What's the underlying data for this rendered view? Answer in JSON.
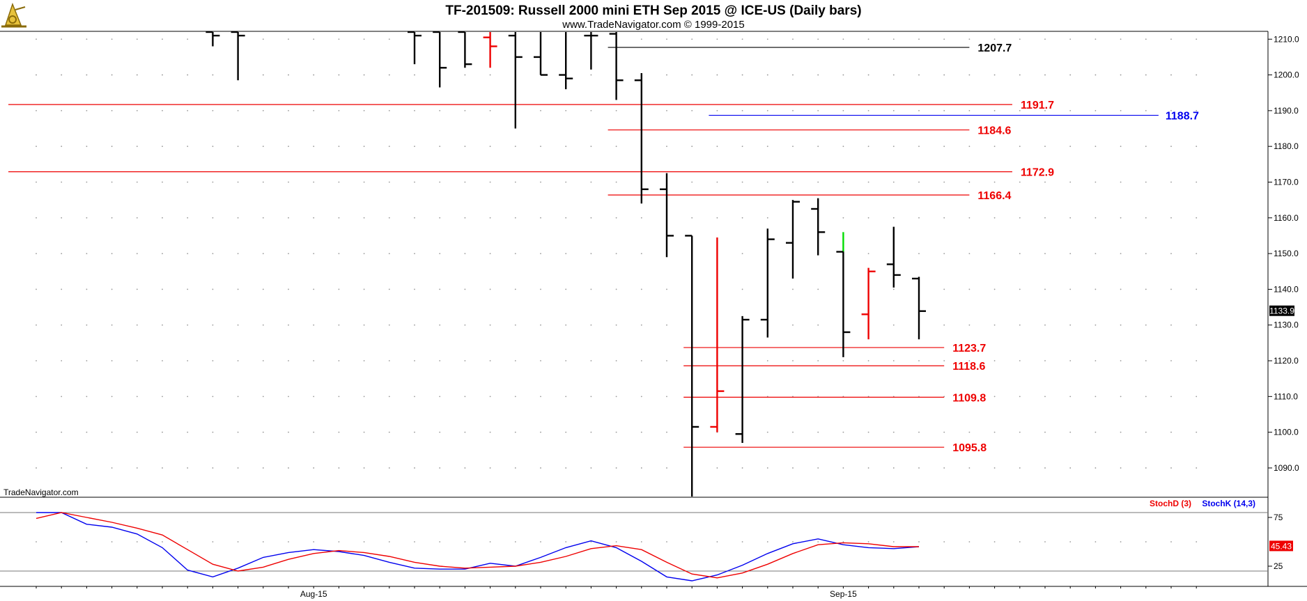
{
  "header": {
    "title": "TF-201509:  Russell 2000 mini ETH Sep 2015 @ ICE-US  (Daily bars)",
    "subtitle": "www.TradeNavigator.com © 1999-2015",
    "watermark": "TradeNavigator.com",
    "logo_icon": "sextant-logo-icon"
  },
  "colors": {
    "up_bar": "#000000",
    "down_bar": "#ee0000",
    "level_red": "#ee0000",
    "level_black": "#000000",
    "level_blue": "#0000ee",
    "stoch_d": "#ee0000",
    "stoch_k": "#0000ee",
    "last_green": "#00dd00"
  },
  "chart_data": [
    {
      "type": "ohlc",
      "ylim": [
        1082,
        1212
      ],
      "y_ticks": [
        "1210.0",
        "1200.0",
        "1190.0",
        "1180.0",
        "1170.0",
        "1160.0",
        "1150.0",
        "1140.0",
        "1130.0",
        "1120.0",
        "1110.0",
        "1100.0",
        "1090.0"
      ],
      "x_labels": [
        {
          "label": "Aug-15",
          "bar": 11
        },
        {
          "label": "Sep-15",
          "bar": 32
        }
      ],
      "last_price": "1133.9",
      "bars": [
        {
          "i": 7,
          "o": 1212,
          "h": 1212,
          "l": 1208,
          "c": 1211,
          "color": "black"
        },
        {
          "i": 8,
          "o": 1212,
          "h": 1212,
          "l": 1198.5,
          "c": 1211,
          "color": "black"
        },
        {
          "i": 15,
          "o": 1212,
          "h": 1212,
          "l": 1203,
          "c": 1211,
          "color": "black"
        },
        {
          "i": 16,
          "o": 1212,
          "h": 1212,
          "l": 1196.5,
          "c": 1202,
          "color": "black"
        },
        {
          "i": 17,
          "o": 1212,
          "h": 1212,
          "l": 1202,
          "c": 1203,
          "color": "black"
        },
        {
          "i": 18,
          "o": 1210.5,
          "h": 1212,
          "l": 1202,
          "c": 1208,
          "color": "red"
        },
        {
          "i": 19,
          "o": 1211,
          "h": 1212,
          "l": 1185,
          "c": 1205,
          "color": "black"
        },
        {
          "i": 20,
          "o": 1205,
          "h": 1212,
          "l": 1200,
          "c": 1200,
          "color": "black"
        },
        {
          "i": 21,
          "o": 1200,
          "h": 1212,
          "l": 1196,
          "c": 1199,
          "color": "black"
        },
        {
          "i": 22,
          "o": 1211,
          "h": 1212,
          "l": 1201.5,
          "c": 1211,
          "color": "black"
        },
        {
          "i": 23,
          "o": 1211.5,
          "h": 1212,
          "l": 1193,
          "c": 1198.5,
          "color": "black"
        },
        {
          "i": 24,
          "o": 1198.5,
          "h": 1200.5,
          "l": 1164,
          "c": 1168,
          "color": "black"
        },
        {
          "i": 25,
          "o": 1168,
          "h": 1172.5,
          "l": 1149,
          "c": 1155,
          "color": "black"
        },
        {
          "i": 26,
          "o": 1155,
          "h": 1155,
          "l": 1082,
          "c": 1101.5,
          "color": "black"
        },
        {
          "i": 27,
          "o": 1101.5,
          "h": 1154.5,
          "l": 1100,
          "c": 1111.5,
          "color": "red"
        },
        {
          "i": 28,
          "o": 1099.5,
          "h": 1132.5,
          "l": 1097,
          "c": 1131.5,
          "color": "black"
        },
        {
          "i": 29,
          "o": 1131.5,
          "h": 1157,
          "l": 1126.5,
          "c": 1154,
          "color": "black"
        },
        {
          "i": 30,
          "o": 1153,
          "h": 1165,
          "l": 1143,
          "c": 1164.5,
          "color": "black"
        },
        {
          "i": 31,
          "o": 1162.5,
          "h": 1165.5,
          "l": 1149.5,
          "c": 1156,
          "color": "black"
        },
        {
          "i": 32,
          "o": 1150.5,
          "h": 1156,
          "l": 1121,
          "c": 1128,
          "color": "black",
          "top_color": "green"
        },
        {
          "i": 33,
          "o": 1133,
          "h": 1146,
          "l": 1126,
          "c": 1145,
          "color": "red"
        },
        {
          "i": 34,
          "o": 1147,
          "h": 1157.5,
          "l": 1140.5,
          "c": 1144,
          "color": "black"
        },
        {
          "i": 35,
          "o": 1143,
          "h": 1143.5,
          "l": 1126,
          "c": 1133.9,
          "color": "black"
        }
      ],
      "levels": [
        {
          "value": 1207.7,
          "label": "1207.7",
          "color": "black",
          "from_bar": 23,
          "to_bar": 37
        },
        {
          "value": 1191.7,
          "label": "1191.7",
          "color": "red",
          "from_bar": 0,
          "to_bar": 38.7
        },
        {
          "value": 1188.7,
          "label": "1188.7",
          "color": "blue",
          "from_bar": 27,
          "to_bar": 44.5
        },
        {
          "value": 1184.6,
          "label": "1184.6",
          "color": "red",
          "from_bar": 23,
          "to_bar": 37
        },
        {
          "value": 1172.9,
          "label": "1172.9",
          "color": "red",
          "from_bar": 0,
          "to_bar": 38.7
        },
        {
          "value": 1166.4,
          "label": "1166.4",
          "color": "red",
          "from_bar": 23,
          "to_bar": 37
        },
        {
          "value": 1123.7,
          "label": "1123.7",
          "color": "red",
          "from_bar": 26,
          "to_bar": 36
        },
        {
          "value": 1118.6,
          "label": "1118.6",
          "color": "red",
          "from_bar": 26,
          "to_bar": 36
        },
        {
          "value": 1109.8,
          "label": "1109.8",
          "color": "red",
          "from_bar": 26,
          "to_bar": 36
        },
        {
          "value": 1095.8,
          "label": "1095.8",
          "color": "red",
          "from_bar": 26,
          "to_bar": 36
        }
      ]
    },
    {
      "type": "line",
      "ylim": [
        5,
        95
      ],
      "y_ticks": [
        "75",
        "25"
      ],
      "reference_lines": [
        80,
        20
      ],
      "last_value": "45.43",
      "legend": [
        {
          "name": "StochD (3)",
          "color": "red"
        },
        {
          "name": "StochK (14,3)",
          "color": "blue"
        }
      ],
      "series": [
        {
          "name": "StochK (14,3)",
          "color": "blue",
          "x": [
            0,
            1,
            2,
            3,
            4,
            5,
            6,
            7,
            8,
            9,
            10,
            11,
            12,
            13,
            14,
            15,
            16,
            17,
            18,
            19,
            20,
            21,
            22,
            23,
            24,
            25,
            26,
            27,
            28,
            29,
            30,
            31,
            32,
            33,
            34,
            35
          ],
          "values": [
            80,
            80,
            68,
            65,
            58,
            44,
            21,
            14,
            23,
            34,
            39,
            42,
            40,
            36,
            29,
            23,
            22,
            22,
            28,
            25,
            34,
            44,
            51,
            44,
            30,
            14,
            10,
            16,
            26,
            38,
            48,
            53,
            47,
            44,
            43,
            45
          ]
        },
        {
          "name": "StochD (3)",
          "color": "red",
          "x": [
            0,
            1,
            2,
            3,
            4,
            5,
            6,
            7,
            8,
            9,
            10,
            11,
            12,
            13,
            14,
            15,
            16,
            17,
            18,
            19,
            20,
            21,
            22,
            23,
            24,
            25,
            26,
            27,
            28,
            29,
            30,
            31,
            32,
            33,
            34,
            35
          ],
          "values": [
            74,
            80,
            75,
            70,
            64,
            57,
            42,
            27,
            20,
            24,
            32,
            38,
            41,
            39,
            35,
            29,
            25,
            23,
            24,
            25,
            29,
            35,
            43,
            46,
            42,
            29,
            17,
            13,
            18,
            27,
            38,
            47,
            49,
            48,
            45,
            45
          ]
        }
      ]
    }
  ]
}
